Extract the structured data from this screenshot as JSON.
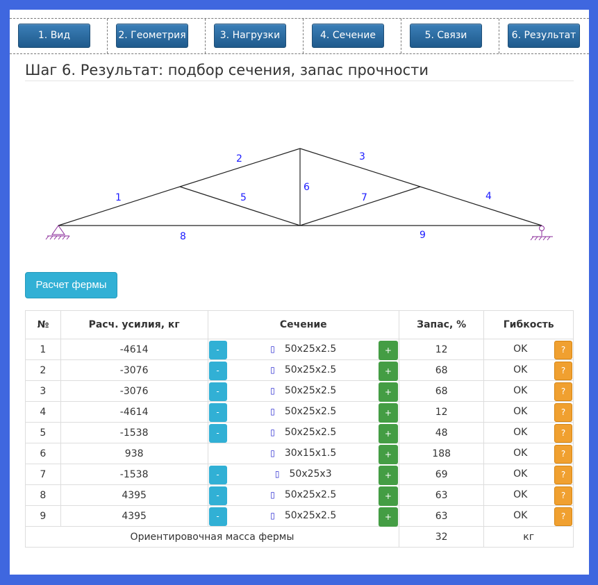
{
  "tabs": [
    "1. Вид",
    "2. Геометрия",
    "3. Нагрузки",
    "4. Сечение",
    "5. Связи",
    "6. Результат"
  ],
  "title": "Шаг 6. Результат: подбор сечения, запас прочности",
  "truss_labels": [
    "1",
    "2",
    "3",
    "4",
    "5",
    "6",
    "7",
    "8",
    "9"
  ],
  "calc_button": "Расчет фермы",
  "table": {
    "headers": [
      "№",
      "Расч. усилия, кг",
      "Сечение",
      "Запас, %",
      "Гибкость"
    ],
    "minus_label": "-",
    "plus_label": "+",
    "help_label": "?",
    "cube_glyph": "▯",
    "rows": [
      {
        "no": "1",
        "force": "-4614",
        "section": "50x25x2.5",
        "reserve": "12",
        "flex": "OK",
        "minus": true
      },
      {
        "no": "2",
        "force": "-3076",
        "section": "50x25x2.5",
        "reserve": "68",
        "flex": "OK",
        "minus": true
      },
      {
        "no": "3",
        "force": "-3076",
        "section": "50x25x2.5",
        "reserve": "68",
        "flex": "OK",
        "minus": true
      },
      {
        "no": "4",
        "force": "-4614",
        "section": "50x25x2.5",
        "reserve": "12",
        "flex": "OK",
        "minus": true
      },
      {
        "no": "5",
        "force": "-1538",
        "section": "50x25x2.5",
        "reserve": "48",
        "flex": "OK",
        "minus": true
      },
      {
        "no": "6",
        "force": "938",
        "section": "30x15x1.5",
        "reserve": "188",
        "flex": "OK",
        "minus": false
      },
      {
        "no": "7",
        "force": "-1538",
        "section": "50x25x3",
        "reserve": "69",
        "flex": "OK",
        "minus": true
      },
      {
        "no": "8",
        "force": "4395",
        "section": "50x25x2.5",
        "reserve": "63",
        "flex": "OK",
        "minus": true
      },
      {
        "no": "9",
        "force": "4395",
        "section": "50x25x2.5",
        "reserve": "63",
        "flex": "OK",
        "minus": true
      }
    ],
    "footer": {
      "label": "Ориентировочная масса фермы",
      "value": "32",
      "unit": "кг"
    }
  }
}
